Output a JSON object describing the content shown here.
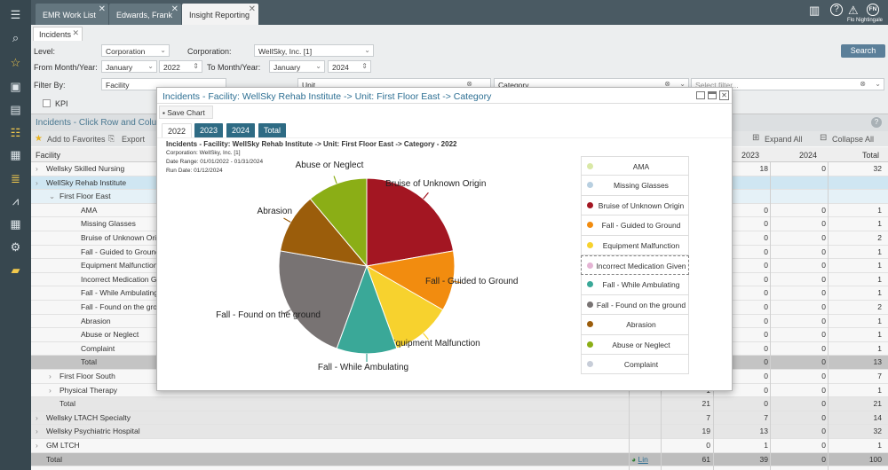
{
  "tabs": [
    {
      "label": "EMR Work List"
    },
    {
      "label": "Edwards, Frank"
    },
    {
      "label": "Insight Reporting"
    }
  ],
  "user": {
    "initials": "FN",
    "name": "Flo Nightingale"
  },
  "subtab": {
    "label": "Incidents"
  },
  "filters": {
    "level_label": "Level:",
    "level_value": "Corporation",
    "corp_label": "Corporation:",
    "corp_value": "WellSky, Inc. [1]",
    "from_label": "From Month/Year:",
    "from_month": "January",
    "from_year": "2022",
    "to_label": "To Month/Year:",
    "to_month": "January",
    "to_year": "2024",
    "filterby_label": "Filter By:",
    "filter1": "Facility",
    "filter2": "Unit",
    "filter3": "Category",
    "filter4_placeholder": "Select filter...",
    "kpi_label": "KPI",
    "search_label": "Search"
  },
  "grid": {
    "title": "Incidents - Click Row and Colu",
    "add_fav": "Add to Favorites",
    "export": "Export",
    "expand_all": "Expand All",
    "collapse_all": "Collapse All",
    "col_facility": "Facility",
    "col_2023": "2023",
    "col_2024": "2024",
    "col_total": "Total",
    "rows": [
      {
        "name": "Wellsky Skilled Nursing",
        "v2023": "18",
        "v2024": "0",
        "total": "32",
        "level": 0
      },
      {
        "name": "WellSky Rehab Institute",
        "v2023": "",
        "v2024": "",
        "total": "",
        "level": 0
      },
      {
        "name": "First Floor East",
        "v2023": "",
        "v2024": "",
        "total": "",
        "level": 1
      },
      {
        "name": "AMA",
        "v2023": "0",
        "v2024": "0",
        "total": "1",
        "level": 2
      },
      {
        "name": "Missing Glasses",
        "v2023": "0",
        "v2024": "0",
        "total": "1",
        "level": 2
      },
      {
        "name": "Bruise of Unknown Origin",
        "v2023": "0",
        "v2024": "0",
        "total": "2",
        "level": 2
      },
      {
        "name": "Fall - Guided to Ground",
        "v2023": "0",
        "v2024": "0",
        "total": "1",
        "level": 2
      },
      {
        "name": "Equipment Malfunction",
        "v2023": "0",
        "v2024": "0",
        "total": "1",
        "level": 2
      },
      {
        "name": "Incorrect Medication Give",
        "v2023": "0",
        "v2024": "0",
        "total": "1",
        "level": 2
      },
      {
        "name": "Fall - While Ambulating",
        "v2023": "0",
        "v2024": "0",
        "total": "1",
        "level": 2
      },
      {
        "name": "Fall - Found on the ground",
        "v2023": "0",
        "v2024": "0",
        "total": "2",
        "level": 2
      },
      {
        "name": "Abrasion",
        "v2023": "0",
        "v2024": "0",
        "total": "1",
        "level": 2
      },
      {
        "name": "Abuse or Neglect",
        "v2023": "0",
        "v2024": "0",
        "total": "1",
        "level": 2
      },
      {
        "name": "Complaint",
        "v2023": "0",
        "v2024": "0",
        "total": "1",
        "level": 2
      },
      {
        "name": "Total",
        "v2022": "",
        "v2023": "0",
        "v2024": "0",
        "total": "13",
        "level": 2
      },
      {
        "name": "First Floor South",
        "v2022": "",
        "v2023": "0",
        "v2024": "0",
        "total": "7",
        "level": 1
      },
      {
        "name": "Physical Therapy",
        "v2022": "1",
        "v2023": "0",
        "v2024": "0",
        "total": "1",
        "level": 1
      },
      {
        "name": "Total",
        "v2022": "21",
        "v2023": "0",
        "v2024": "0",
        "total": "21",
        "level": 1
      },
      {
        "name": "Wellsky LTACH Specialty",
        "v2022": "7",
        "v2023": "7",
        "v2024": "0",
        "total": "14",
        "level": 0
      },
      {
        "name": "Wellsky Psychiatric Hospital",
        "v2022": "19",
        "v2023": "13",
        "v2024": "0",
        "total": "32",
        "level": 0
      },
      {
        "name": "GM LTCH",
        "v2022": "0",
        "v2023": "1",
        "v2024": "0",
        "total": "1",
        "level": 0
      },
      {
        "name": "Total",
        "v2022": "61",
        "v2023": "39",
        "v2024": "0",
        "total": "100",
        "level": 0
      }
    ],
    "footer_link": "Lin"
  },
  "modal": {
    "title": "Incidents - Facility: WellSky Rehab Institute -> Unit: First Floor East -> Category",
    "save_chart": "Save Chart",
    "years": [
      "2022",
      "2023",
      "2024",
      "Total"
    ],
    "chart_title": "Incidents - Facility: WellSky Rehab Institute -> Unit: First Floor East -> Category -  2022",
    "corp_line": "Corporation: WellSky, Inc. [1]",
    "date_line": "Date Range: 01/01/2022 - 01/31/2024",
    "run_line": "Run Date: 01/12/2024"
  },
  "chart_data": {
    "type": "pie",
    "title": "Incidents - Facility: WellSky Rehab Institute -> Unit: First Floor East -> Category -  2022",
    "legend": [
      "AMA",
      "Missing Glasses",
      "Bruise of Unknown Origin",
      "Fall - Guided to Ground",
      "Equipment Malfunction",
      "Incorrect Medication Given",
      "Fall - While Ambulating",
      "Fall - Found on the ground",
      "Abrasion",
      "Abuse or Neglect",
      "Complaint"
    ],
    "legend_colors": [
      "#d9e8a6",
      "#b8cfe0",
      "#a31622",
      "#f28c0f",
      "#f7d22e",
      "#e4b4d4",
      "#3aa898",
      "#787373",
      "#9b5d0b",
      "#8bae16",
      "#c7cdd8"
    ],
    "slices": [
      {
        "label": "Bruise of Unknown Origin",
        "value": 2,
        "color": "#a31622"
      },
      {
        "label": "Fall - Guided to Ground",
        "value": 1,
        "color": "#f28c0f"
      },
      {
        "label": "Equipment Malfunction",
        "value": 1,
        "color": "#f7d22e"
      },
      {
        "label": "Fall - While Ambulating",
        "value": 1,
        "color": "#3aa898"
      },
      {
        "label": "Fall - Found on the ground",
        "value": 2,
        "color": "#787373"
      },
      {
        "label": "Abrasion",
        "value": 1,
        "color": "#9b5d0b"
      },
      {
        "label": "Abuse or Neglect",
        "value": 1,
        "color": "#8bae16"
      }
    ]
  }
}
